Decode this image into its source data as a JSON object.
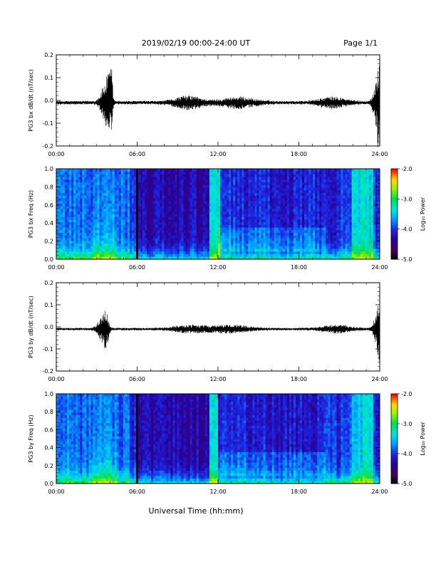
{
  "header": {
    "title": "2019/02/19  00:00-24:00 UT",
    "page": "Page 1/1"
  },
  "xlabel": "Universal Time (hh:mm)",
  "chart_data": [
    {
      "type": "line",
      "ylabel": "PG3 bx dB/dt (nT/sec)",
      "xlim": [
        0,
        24
      ],
      "ylim": [
        -0.2,
        0.2
      ],
      "x_ticks": [
        "00:00",
        "06:00",
        "12:00",
        "18:00",
        "24:00"
      ],
      "y_ticks": [
        "-0.2",
        "-0.1",
        "0.0",
        "0.1",
        "0.2"
      ],
      "baseline": -0.01,
      "bursts": [
        {
          "t": 3.6,
          "amp": 0.07,
          "width": 0.4
        },
        {
          "t": 3.9,
          "amp": 0.09,
          "width": 0.2
        },
        {
          "t": 4.1,
          "amp": 0.11,
          "width": 0.1
        },
        {
          "t": 9.8,
          "amp": 0.025,
          "width": 1.2
        },
        {
          "t": 13.5,
          "amp": 0.02,
          "width": 1.5
        },
        {
          "t": 20.5,
          "amp": 0.02,
          "width": 1.2
        },
        {
          "t": 23.8,
          "amp": 0.1,
          "width": 0.3
        },
        {
          "t": 23.95,
          "amp": 0.12,
          "width": 0.15
        }
      ],
      "noise_amp": 0.008
    },
    {
      "type": "heatmap",
      "ylabel": "PG3 bx Freq (Hz)",
      "xlim": [
        0,
        24
      ],
      "ylim": [
        0,
        1.0
      ],
      "x_ticks": [
        "00:00",
        "06:00",
        "12:00",
        "18:00",
        "24:00"
      ],
      "y_ticks": [
        "0.0",
        "0.2",
        "0.4",
        "0.6",
        "0.8",
        "1.0"
      ],
      "colorbar": {
        "label": "Log₁₀ Power",
        "range": [
          -5.0,
          -2.0
        ],
        "ticks": [
          "-2.0",
          "-3.0",
          "-4.0",
          "-5.0"
        ]
      },
      "data_gap_t": 6.0,
      "intense_bands": [
        {
          "t0": 11.4,
          "t1": 12.1,
          "level": 0.45
        },
        {
          "t0": 21.9,
          "t1": 23.5,
          "level": 0.4
        }
      ]
    },
    {
      "type": "line",
      "ylabel": "PG3 by dB/dt (nT/sec)",
      "xlim": [
        0,
        24
      ],
      "ylim": [
        -0.2,
        0.2
      ],
      "x_ticks": [
        "00:00",
        "06:00",
        "12:00",
        "18:00",
        "24:00"
      ],
      "y_ticks": [
        "-0.2",
        "-0.1",
        "0.0",
        "0.1",
        "0.2"
      ],
      "baseline": -0.01,
      "bursts": [
        {
          "t": 3.4,
          "amp": 0.05,
          "width": 0.4
        },
        {
          "t": 3.7,
          "amp": 0.06,
          "width": 0.2
        },
        {
          "t": 10.0,
          "amp": 0.015,
          "width": 1.5
        },
        {
          "t": 13.0,
          "amp": 0.015,
          "width": 1.5
        },
        {
          "t": 20.8,
          "amp": 0.015,
          "width": 1.2
        },
        {
          "t": 23.8,
          "amp": 0.07,
          "width": 0.3
        },
        {
          "t": 23.95,
          "amp": 0.1,
          "width": 0.12
        }
      ],
      "noise_amp": 0.006
    },
    {
      "type": "heatmap",
      "ylabel": "PG3 by Freq (Hz)",
      "xlim": [
        0,
        24
      ],
      "ylim": [
        0,
        1.0
      ],
      "x_ticks": [
        "00:00",
        "06:00",
        "12:00",
        "18:00",
        "24:00"
      ],
      "y_ticks": [
        "0.0",
        "0.2",
        "0.4",
        "0.6",
        "0.8",
        "1.0"
      ],
      "colorbar": {
        "label": "Log₁₀ Power",
        "range": [
          -5.0,
          -2.0
        ],
        "ticks": [
          "-2.0",
          "-3.0",
          "-4.0",
          "-5.0"
        ]
      },
      "data_gap_t": 6.0,
      "intense_bands": [
        {
          "t0": 11.4,
          "t1": 12.0,
          "level": 0.4
        },
        {
          "t0": 21.9,
          "t1": 23.5,
          "level": 0.35
        }
      ]
    }
  ]
}
